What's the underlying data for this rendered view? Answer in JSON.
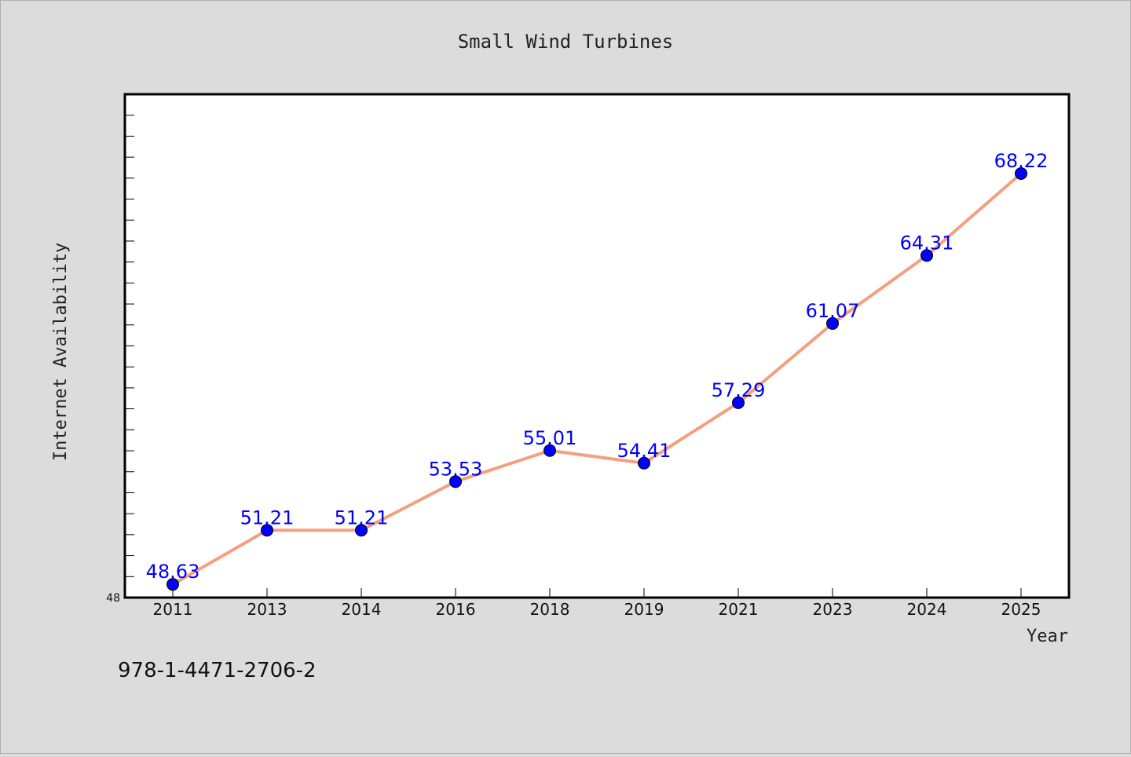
{
  "chart_data": {
    "type": "line",
    "title": "Small Wind Turbines",
    "xlabel": "Year",
    "ylabel": "Internet Availability",
    "categories": [
      "2011",
      "2013",
      "2014",
      "2016",
      "2018",
      "2019",
      "2021",
      "2023",
      "2024",
      "2025"
    ],
    "series": [
      {
        "values": [
          48.63,
          51.21,
          51.21,
          53.53,
          55.01,
          54.41,
          57.29,
          61.07,
          64.31,
          68.22
        ]
      }
    ],
    "data_labels": [
      "48.63",
      "51.21",
      "51.21",
      "53.53",
      "55.01",
      "54.41",
      "57.29",
      "61.07",
      "64.31",
      "68.22"
    ],
    "y_tick_labels": [
      "48"
    ],
    "ylim": [
      48.0,
      72.0
    ],
    "grid": false,
    "line_color": "#f4a07e",
    "marker_color": "#0000ff",
    "label_color": "#0000ff"
  },
  "footer_text": "978-1-4471-2706-2"
}
